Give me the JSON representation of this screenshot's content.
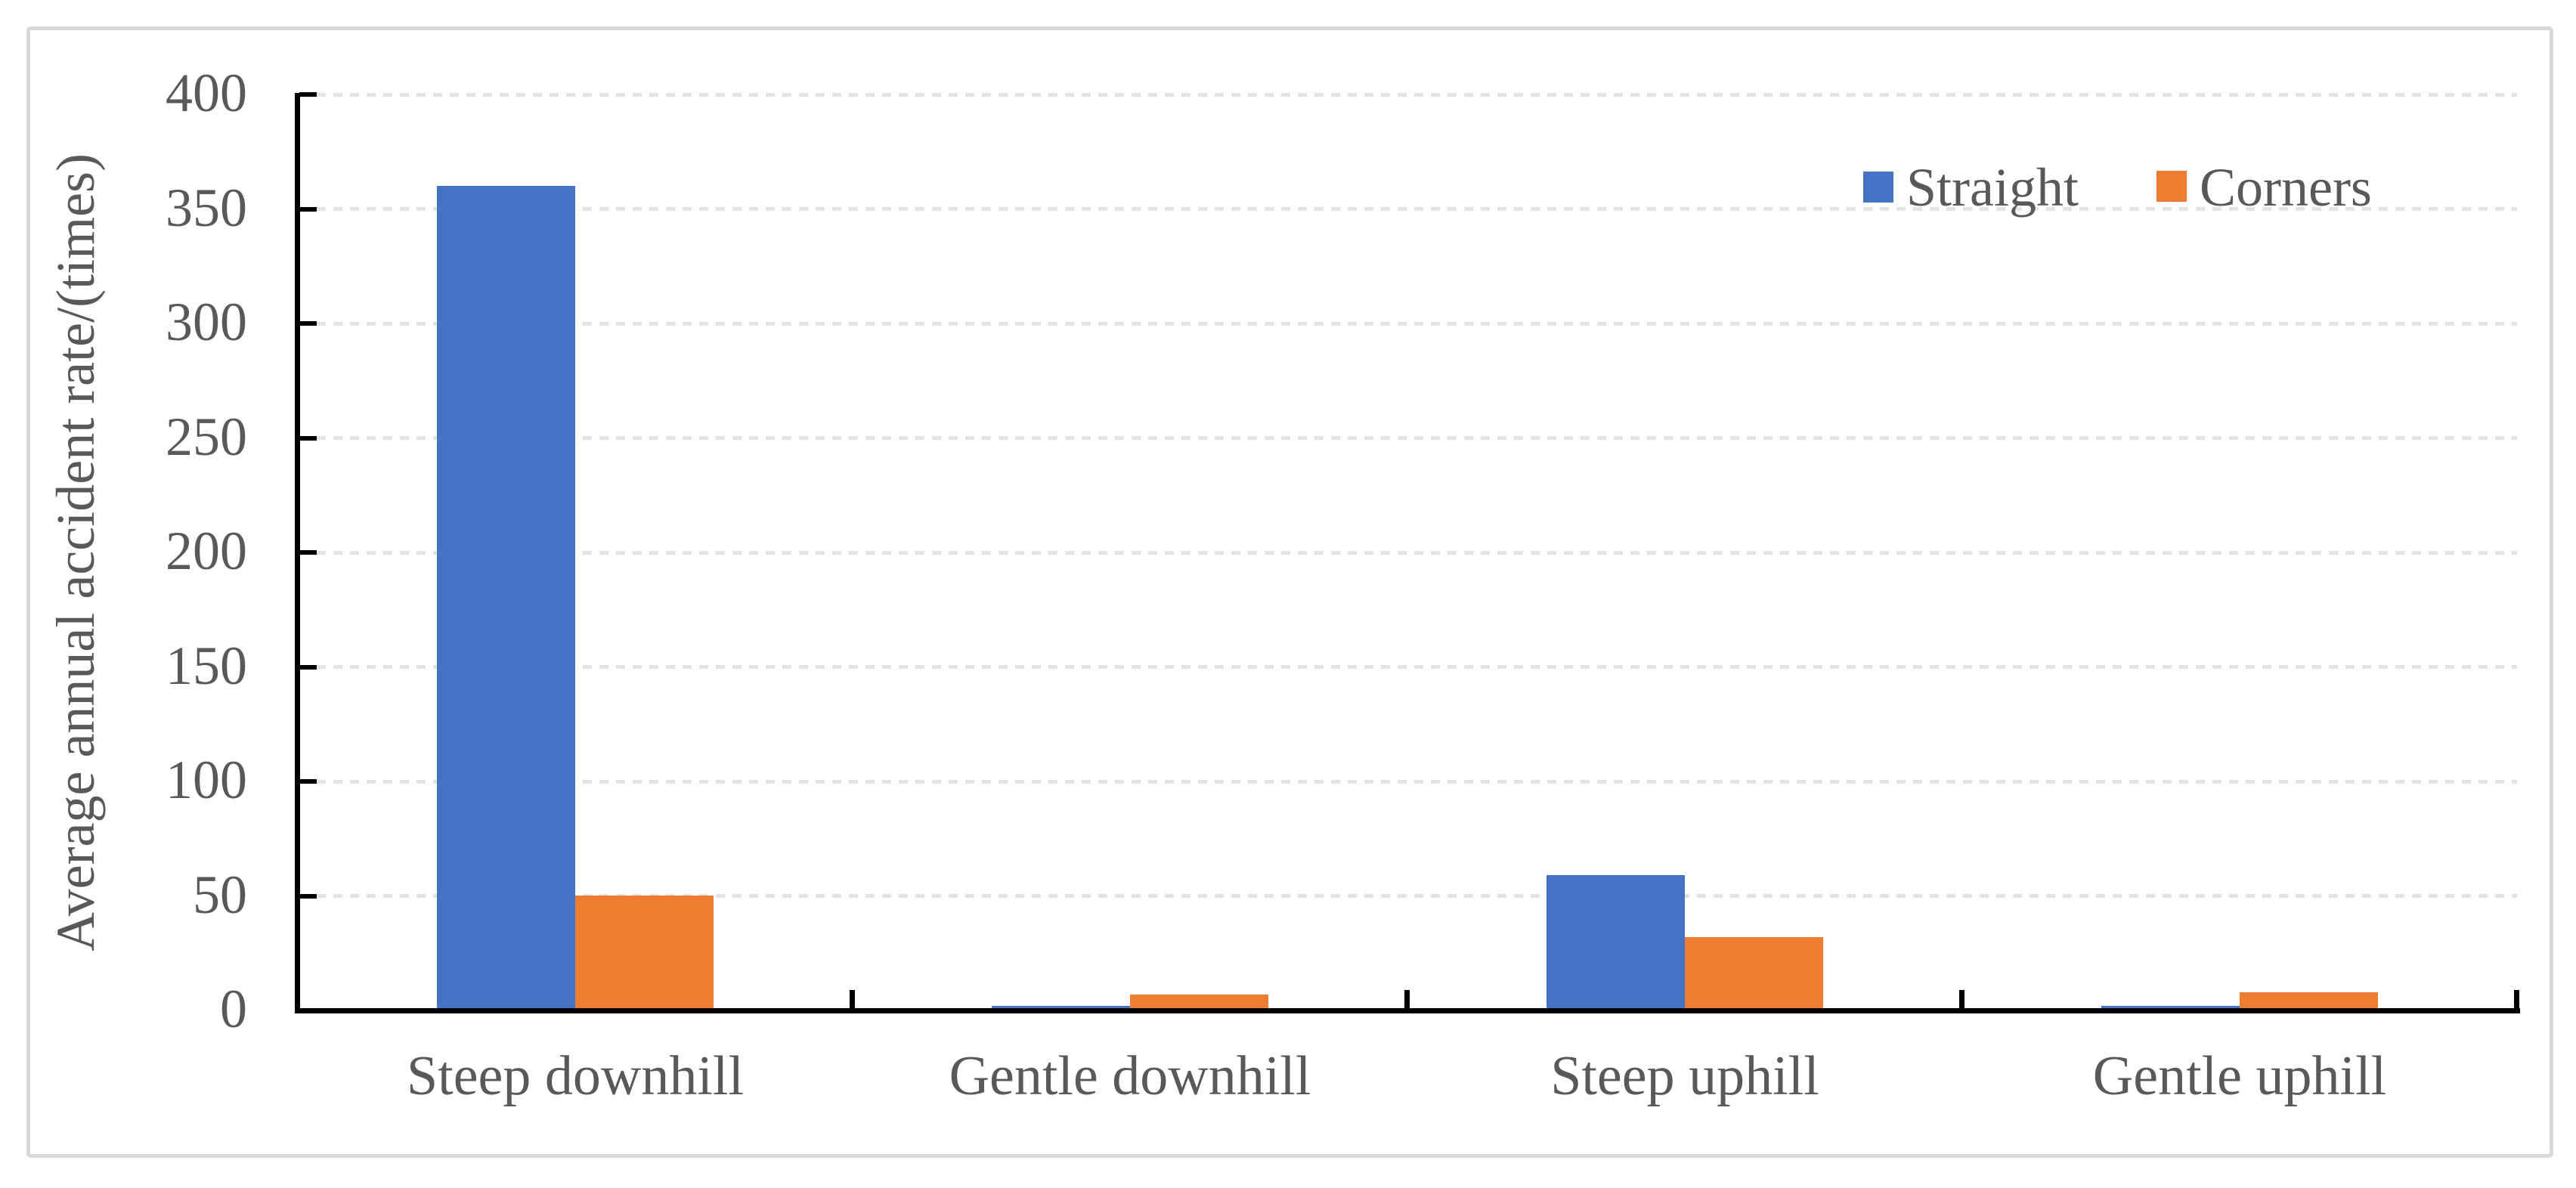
{
  "figure": {
    "background": "#FFFFFF",
    "border_color": "#D8D8D8"
  },
  "colors": {
    "axis": "#000000",
    "tick_label": "#595959",
    "gridline": "#E3E3E3"
  },
  "chart_data": {
    "type": "bar",
    "title": "",
    "categories": [
      "Steep downhill",
      "Gentle downhill",
      "Steep uphill",
      "Gentle uphill"
    ],
    "series": [
      {
        "name": "Straight",
        "color": "#4472C4",
        "values": [
          360,
          2,
          59,
          2
        ]
      },
      {
        "name": "Corners",
        "color": "#ED7D31",
        "values": [
          50,
          7,
          32,
          8
        ]
      }
    ],
    "xlabel": "",
    "ylabel": "Average annual accident rate/(times)",
    "ylim": [
      0,
      400
    ],
    "yticks": [
      0,
      50,
      100,
      150,
      200,
      250,
      300,
      350,
      400
    ],
    "grid": "horizontal-dashed",
    "legend_position": "top-right-inside"
  }
}
